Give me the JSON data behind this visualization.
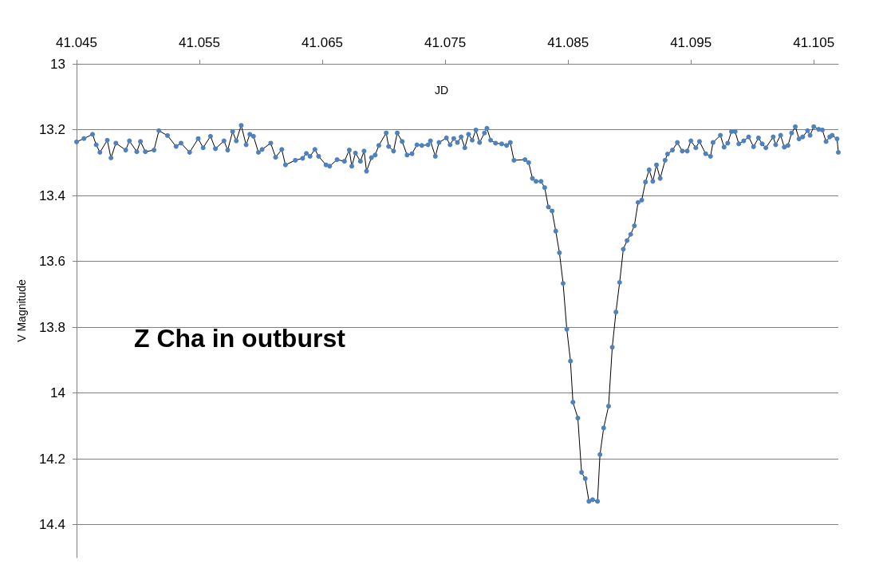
{
  "chart_data": {
    "type": "line",
    "xlabel": "JD",
    "ylabel": "V Magnitude",
    "annotations": [
      "Z Cha in outburst"
    ],
    "xlim": [
      41.045,
      41.107
    ],
    "xticks": [
      41.045,
      41.055,
      41.065,
      41.075,
      41.085,
      41.095,
      41.105
    ],
    "ylim": [
      14.5,
      13
    ],
    "yticks": [
      13,
      13.2,
      13.4,
      13.6,
      13.8,
      14,
      14.2,
      14.4
    ],
    "grid": "y",
    "marker": "circle",
    "line_style": "solid",
    "series": [
      {
        "color": "#4f81bd",
        "x": [
          41.045,
          41.0456,
          41.0463,
          41.0466,
          41.0469,
          41.0475,
          41.0478,
          41.0482,
          41.049,
          41.0493,
          41.0499,
          41.0502,
          41.0506,
          41.0513,
          41.0517,
          41.0524,
          41.0531,
          41.0535,
          41.0542,
          41.0549,
          41.0553,
          41.0559,
          41.0563,
          41.057,
          41.0573,
          41.0577,
          41.058,
          41.0584,
          41.0588,
          41.0591,
          41.0594,
          41.0598,
          41.0601,
          41.0608,
          41.0612,
          41.0617,
          41.062,
          41.0628,
          41.0634,
          41.0637,
          41.064,
          41.0644,
          41.0647,
          41.0653,
          41.0656,
          41.0662,
          41.0668,
          41.0672,
          41.0674,
          41.0677,
          41.0681,
          41.0684,
          41.0686,
          41.069,
          41.0693,
          41.0696,
          41.0702,
          41.0704,
          41.0708,
          41.0711,
          41.0715,
          41.0719,
          41.0723,
          41.0727,
          41.0731,
          41.0736,
          41.0738,
          41.0742,
          41.0745,
          41.0751,
          41.0754,
          41.0757,
          41.076,
          41.0763,
          41.0766,
          41.0769,
          41.0772,
          41.0775,
          41.0778,
          41.0782,
          41.0784,
          41.0787,
          41.0791,
          41.0796,
          41.08,
          41.0803,
          41.0806,
          41.0815,
          41.0818,
          41.0821,
          41.0824,
          41.0828,
          41.0831,
          41.0834,
          41.0837,
          41.084,
          41.0843,
          41.0846,
          41.0849,
          41.0852,
          41.0854,
          41.0858,
          41.0861,
          41.0864,
          41.0867,
          41.087,
          41.0874,
          41.0876,
          41.0879,
          41.0883,
          41.0886,
          41.0889,
          41.0892,
          41.0895,
          41.0898,
          41.0901,
          41.0904,
          41.0907,
          41.091,
          41.0913,
          41.0916,
          41.0919,
          41.0922,
          41.0925,
          41.0929,
          41.0931,
          41.0935,
          41.0939,
          41.0943,
          41.0947,
          41.095,
          41.0954,
          41.0957,
          41.0962,
          41.0966,
          41.0968,
          41.0974,
          41.0977,
          41.098,
          41.0983,
          41.0986,
          41.0989,
          41.0993,
          41.0997,
          41.1001,
          41.1005,
          41.1008,
          41.1011,
          41.1017,
          41.1019,
          41.1023,
          41.1026,
          41.1029,
          41.1032,
          41.1035,
          41.1038,
          41.1041,
          41.1045,
          41.1047,
          41.105,
          41.1054,
          41.1057,
          41.106,
          41.1063,
          41.1065,
          41.1069,
          41.107
        ],
        "values": [
          13.237,
          13.227,
          13.214,
          13.246,
          13.269,
          13.232,
          13.286,
          13.241,
          13.262,
          13.234,
          13.267,
          13.236,
          13.267,
          13.262,
          13.203,
          13.218,
          13.251,
          13.241,
          13.269,
          13.227,
          13.255,
          13.22,
          13.258,
          13.234,
          13.262,
          13.206,
          13.234,
          13.187,
          13.246,
          13.214,
          13.22,
          13.269,
          13.26,
          13.241,
          13.284,
          13.26,
          13.307,
          13.293,
          13.287,
          13.272,
          13.281,
          13.26,
          13.281,
          13.307,
          13.311,
          13.291,
          13.296,
          13.262,
          13.311,
          13.271,
          13.296,
          13.265,
          13.326,
          13.285,
          13.277,
          13.248,
          13.21,
          13.251,
          13.265,
          13.21,
          13.236,
          13.277,
          13.273,
          13.246,
          13.248,
          13.246,
          13.234,
          13.281,
          13.239,
          13.225,
          13.246,
          13.227,
          13.239,
          13.222,
          13.255,
          13.214,
          13.232,
          13.201,
          13.239,
          13.21,
          13.196,
          13.232,
          13.241,
          13.243,
          13.248,
          13.239,
          13.293,
          13.291,
          13.3,
          13.348,
          13.357,
          13.357,
          13.376,
          13.435,
          13.447,
          13.508,
          13.574,
          13.667,
          13.806,
          13.903,
          14.028,
          14.076,
          14.241,
          14.26,
          14.329,
          14.324,
          14.329,
          14.187,
          14.106,
          14.04,
          13.861,
          13.754,
          13.664,
          13.563,
          13.537,
          13.518,
          13.492,
          13.421,
          13.414,
          13.359,
          13.322,
          13.357,
          13.307,
          13.348,
          13.293,
          13.274,
          13.262,
          13.239,
          13.265,
          13.265,
          13.234,
          13.255,
          13.236,
          13.273,
          13.281,
          13.239,
          13.217,
          13.253,
          13.241,
          13.206,
          13.206,
          13.243,
          13.234,
          13.222,
          13.252,
          13.225,
          13.243,
          13.255,
          13.222,
          13.246,
          13.217,
          13.253,
          13.248,
          13.21,
          13.191,
          13.228,
          13.222,
          13.203,
          13.217,
          13.191,
          13.199,
          13.201,
          13.236,
          13.222,
          13.217,
          13.228,
          13.269
        ]
      }
    ]
  }
}
